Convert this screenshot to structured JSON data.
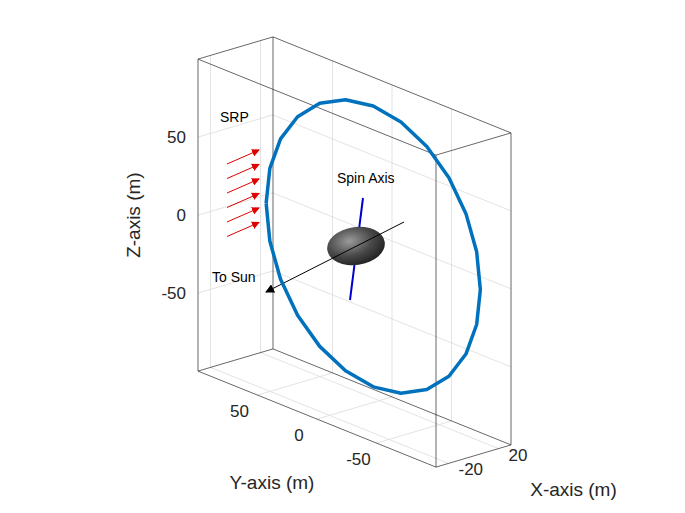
{
  "chart_data": {
    "type": "line3d",
    "x_label": "X-axis (m)",
    "y_label": "Y-axis (m)",
    "z_label": "Z-axis (m)",
    "xlim": [
      -30,
      30
    ],
    "ylim": [
      -100,
      100
    ],
    "zlim": [
      -100,
      100
    ],
    "xticks": [
      -20,
      20
    ],
    "yticks": [
      -50,
      0,
      50
    ],
    "zticks": [
      -50,
      0,
      50
    ],
    "grid": true,
    "series": [
      {
        "color": "#0072bd",
        "x": [
          15,
          15,
          15,
          15,
          15,
          15,
          15,
          15,
          15,
          15,
          15,
          15,
          15,
          15,
          15,
          15,
          15,
          15,
          15,
          15,
          15,
          15,
          15,
          15,
          15
        ],
        "y": [
          90,
          86.9,
          77.9,
          63.6,
          45,
          23.3,
          0,
          -23.3,
          -45,
          -63.6,
          -77.9,
          -86.9,
          -90,
          -86.9,
          -77.9,
          -63.6,
          -45,
          -23.3,
          0,
          23.3,
          45,
          63.6,
          77.9,
          86.9,
          90
        ],
        "z": [
          0,
          23.3,
          45,
          63.6,
          77.9,
          86.9,
          90,
          86.9,
          77.9,
          63.6,
          45,
          23.3,
          0,
          -23.3,
          -45,
          -63.6,
          -77.9,
          -86.9,
          -90,
          -86.9,
          -77.9,
          -63.6,
          -45,
          -23.3,
          0
        ]
      }
    ],
    "annotations": [
      "SRP",
      "Spin Axis",
      "To Sun"
    ]
  }
}
